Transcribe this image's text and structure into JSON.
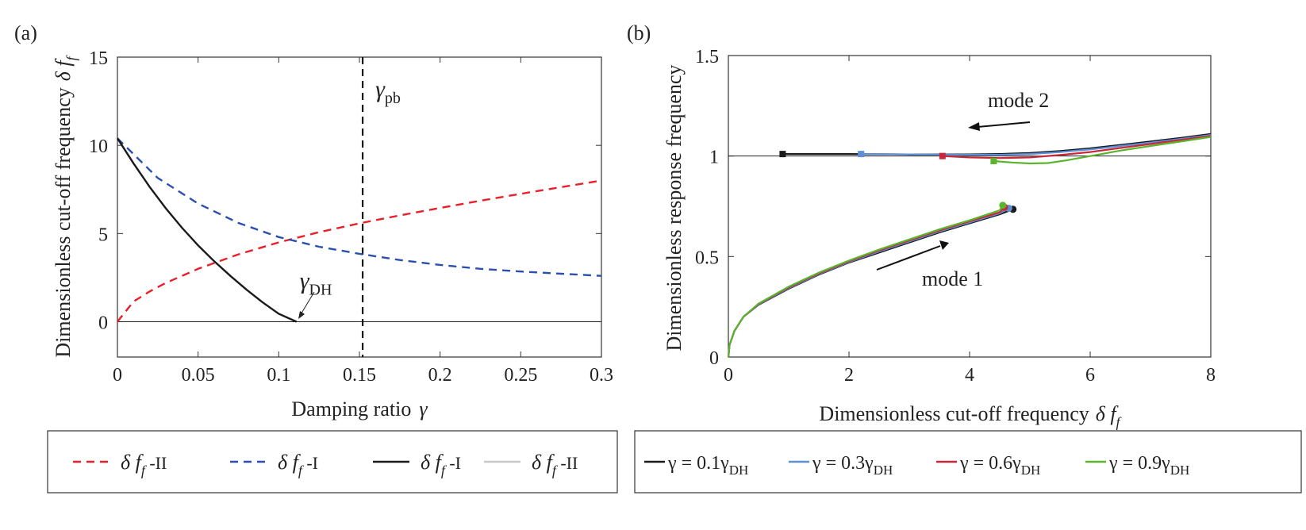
{
  "chart_data": [
    {
      "panel_label": "(a)",
      "type": "line",
      "xlabel": "Damping ratio",
      "xlabel_symbol": "γ",
      "ylabel": "Dimensionless cut-off frequency",
      "ylabel_symbol": "δ f",
      "ylabel_subscript": "f",
      "xlim": [
        0,
        0.3
      ],
      "ylim": [
        -2,
        15
      ],
      "xticks": [
        0,
        0.05,
        0.1,
        0.15,
        0.2,
        0.25,
        0.3
      ],
      "xtick_labels": [
        "0",
        "0.05",
        "0.1",
        "0.15",
        "0.2",
        "0.25",
        "0.3"
      ],
      "yticks": [
        0,
        5,
        10,
        15
      ],
      "ytick_labels": [
        "0",
        "5",
        "10",
        "15"
      ],
      "series": [
        {
          "name": "δ ff -II",
          "color": "#e8202a",
          "style": "dashed",
          "x": [
            0,
            0.01,
            0.02,
            0.03,
            0.05,
            0.075,
            0.1,
            0.125,
            0.15,
            0.175,
            0.2,
            0.225,
            0.25,
            0.275,
            0.3
          ],
          "y": [
            0,
            1.15,
            1.72,
            2.2,
            3.0,
            3.82,
            4.5,
            5.08,
            5.58,
            6.03,
            6.45,
            6.86,
            7.25,
            7.63,
            8.0
          ]
        },
        {
          "name": "δ ff -I",
          "color": "#2a4fb0",
          "style": "dashed",
          "x": [
            0,
            0.025,
            0.05,
            0.075,
            0.1,
            0.125,
            0.15,
            0.175,
            0.2,
            0.225,
            0.25,
            0.275,
            0.3
          ],
          "y": [
            10.4,
            8.15,
            6.7,
            5.6,
            4.8,
            4.25,
            3.85,
            3.5,
            3.22,
            3.0,
            2.85,
            2.72,
            2.6
          ]
        },
        {
          "name": "δ ff -I",
          "color": "#1a1a1a",
          "style": "solid",
          "x": [
            0,
            0.01,
            0.02,
            0.03,
            0.04,
            0.05,
            0.06,
            0.07,
            0.08,
            0.09,
            0.1,
            0.111
          ],
          "y": [
            10.4,
            8.98,
            7.64,
            6.43,
            5.33,
            4.33,
            3.43,
            2.6,
            1.82,
            1.1,
            0.45,
            0
          ]
        },
        {
          "name": "δ ff -II",
          "color": "#c8c8c8",
          "style": "solid",
          "x": [],
          "y": []
        }
      ],
      "baseline_y": 0,
      "vline": {
        "x": 0.152,
        "label": "γ",
        "label_sub": "pb"
      },
      "annotation": {
        "label": "γ",
        "label_sub": "DH",
        "x": 0.111,
        "y": 0
      }
    },
    {
      "panel_label": "(b)",
      "type": "line",
      "xlabel": "Dimensionless cut-off frequency",
      "xlabel_symbol": "δ f",
      "xlabel_subscript": "f",
      "ylabel": "Dimensionless response frequency",
      "xlim": [
        0,
        8
      ],
      "ylim": [
        0,
        1.5
      ],
      "xticks": [
        0,
        2,
        4,
        6,
        8
      ],
      "xtick_labels": [
        "0",
        "2",
        "4",
        "6",
        "8"
      ],
      "yticks": [
        0,
        0.5,
        1,
        1.5
      ],
      "ytick_labels": [
        "0",
        "0.5",
        "1",
        "1.5"
      ],
      "baseline_y": 1,
      "mode_labels": [
        "mode 2",
        "mode 1"
      ],
      "series": [
        {
          "name": "γ = 0.1γDH",
          "label_main": "γ = 0.1γ",
          "label_sub": "DH",
          "color": "#1a1a1a",
          "mode2": {
            "x": [
              0.9,
              2,
              3,
              4,
              4.5,
              5,
              5.5,
              6,
              6.5,
              7,
              7.5,
              8
            ],
            "y": [
              1.01,
              1.01,
              1.008,
              1.008,
              1.01,
              1.015,
              1.025,
              1.038,
              1.055,
              1.072,
              1.09,
              1.11
            ]
          },
          "mode1": {
            "x": [
              0,
              0.02,
              0.1,
              0.25,
              0.5,
              1,
              1.5,
              2,
              2.5,
              3,
              3.5,
              4,
              4.5,
              4.72
            ],
            "y": [
              0,
              0.06,
              0.13,
              0.2,
              0.26,
              0.34,
              0.41,
              0.47,
              0.52,
              0.57,
              0.62,
              0.665,
              0.71,
              0.735
            ]
          },
          "mode2_marker": {
            "x": 0.9,
            "y": 1.01
          },
          "mode1_marker": {
            "x": 4.72,
            "y": 0.735
          }
        },
        {
          "name": "γ = 0.3γDH",
          "label_main": "γ = 0.3γ",
          "label_sub": "DH",
          "color": "#5b8fd6",
          "mode2": {
            "x": [
              2.2,
              3,
              4,
              4.5,
              5,
              5.5,
              6,
              6.5,
              7,
              7.5,
              8
            ],
            "y": [
              1.01,
              1.008,
              1.006,
              1.006,
              1.01,
              1.02,
              1.033,
              1.05,
              1.067,
              1.085,
              1.105
            ]
          },
          "mode1": {
            "x": [
              0,
              0.02,
              0.1,
              0.25,
              0.5,
              1,
              1.5,
              2,
              2.5,
              3,
              3.5,
              4,
              4.5,
              4.65
            ],
            "y": [
              0,
              0.06,
              0.13,
              0.2,
              0.262,
              0.343,
              0.413,
              0.473,
              0.525,
              0.575,
              0.625,
              0.67,
              0.715,
              0.74
            ]
          },
          "mode2_marker": {
            "x": 2.2,
            "y": 1.01
          },
          "mode1_marker": {
            "x": 4.65,
            "y": 0.74
          }
        },
        {
          "name": "γ = 0.6γDH",
          "label_main": "γ = 0.6γ",
          "label_sub": "DH",
          "color": "#c8283a",
          "mode2": {
            "x": [
              3.55,
              4,
              4.5,
              5,
              5.5,
              6,
              6.5,
              7,
              7.5,
              8
            ],
            "y": [
              1.0,
              0.993,
              0.99,
              0.993,
              1.005,
              1.02,
              1.04,
              1.06,
              1.08,
              1.1
            ]
          },
          "mode1": {
            "x": [
              0,
              0.02,
              0.1,
              0.25,
              0.5,
              1,
              1.5,
              2,
              2.5,
              3,
              3.5,
              4,
              4.5,
              4.58
            ],
            "y": [
              0,
              0.06,
              0.13,
              0.2,
              0.264,
              0.346,
              0.416,
              0.476,
              0.53,
              0.58,
              0.63,
              0.675,
              0.72,
              0.745
            ]
          },
          "mode2_marker": {
            "x": 3.55,
            "y": 1.0
          },
          "mode1_marker": {
            "x": 4.58,
            "y": 0.745
          }
        },
        {
          "name": "γ = 0.9γDH",
          "label_main": "γ = 0.9γ",
          "label_sub": "DH",
          "color": "#5ab52e",
          "mode2": {
            "x": [
              4.4,
              4.7,
              5,
              5.3,
              5.6,
              6,
              6.5,
              7,
              7.5,
              8
            ],
            "y": [
              0.975,
              0.968,
              0.963,
              0.965,
              0.978,
              1.0,
              1.027,
              1.05,
              1.072,
              1.095
            ]
          },
          "mode1": {
            "x": [
              0,
              0.02,
              0.1,
              0.25,
              0.5,
              1,
              1.5,
              2,
              2.5,
              3,
              3.5,
              4,
              4.5,
              4.55
            ],
            "y": [
              0,
              0.06,
              0.13,
              0.2,
              0.266,
              0.35,
              0.42,
              0.48,
              0.535,
              0.585,
              0.635,
              0.68,
              0.73,
              0.755
            ]
          },
          "mode2_marker": {
            "x": 4.4,
            "y": 0.975
          },
          "mode1_marker": {
            "x": 4.55,
            "y": 0.755
          }
        }
      ]
    }
  ],
  "legend_a": [
    {
      "label": "δ f",
      "sub": "f",
      "suffix": " -II",
      "color": "#e8202a",
      "style": "dashed"
    },
    {
      "label": "δ f",
      "sub": "f",
      "suffix": " -I",
      "color": "#2a4fb0",
      "style": "dashed"
    },
    {
      "label": "δ f",
      "sub": "f",
      "suffix": " -I",
      "color": "#1a1a1a",
      "style": "solid"
    },
    {
      "label": "δ f",
      "sub": "f",
      "suffix": " -II",
      "color": "#c8c8c8",
      "style": "solid"
    }
  ]
}
